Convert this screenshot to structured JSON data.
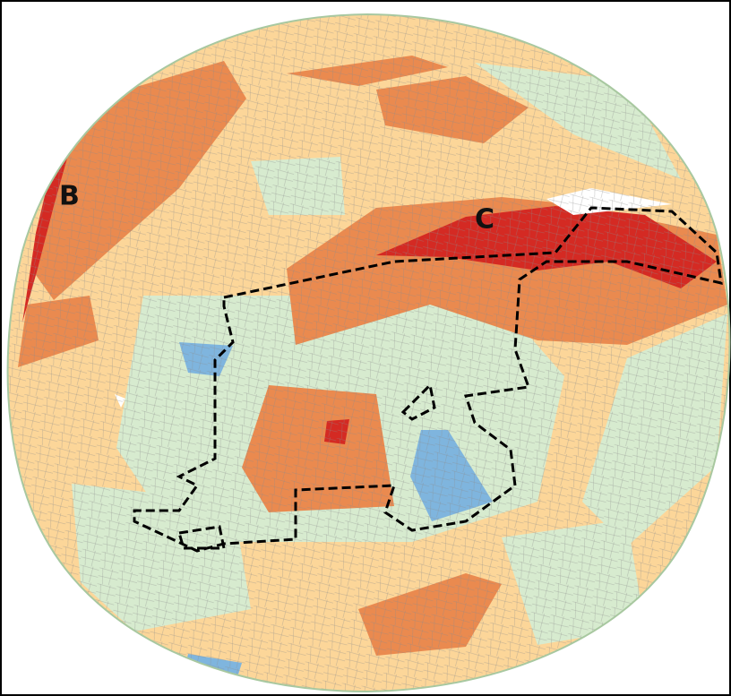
{
  "map": {
    "labels": [
      "B",
      "C"
    ]
  }
}
